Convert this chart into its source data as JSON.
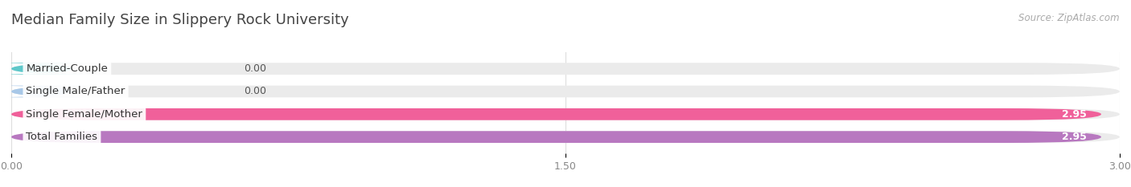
{
  "title": "Median Family Size in Slippery Rock University",
  "source": "Source: ZipAtlas.com",
  "categories": [
    "Married-Couple",
    "Single Male/Father",
    "Single Female/Mother",
    "Total Families"
  ],
  "values": [
    0.0,
    0.0,
    2.95,
    2.95
  ],
  "bar_colors": [
    "#5ec8ca",
    "#a8c8e8",
    "#f0609a",
    "#b878c0"
  ],
  "track_color": "#ebebeb",
  "xlim": [
    0,
    3.0
  ],
  "xticks": [
    0.0,
    1.5,
    3.0
  ],
  "xtick_labels": [
    "0.00",
    "1.50",
    "3.00"
  ],
  "bar_height": 0.52,
  "background_color": "#ffffff",
  "title_fontsize": 13,
  "label_fontsize": 9.5,
  "value_fontsize": 9,
  "axis_fontsize": 9,
  "title_color": "#444444",
  "source_color": "#aaaaaa"
}
